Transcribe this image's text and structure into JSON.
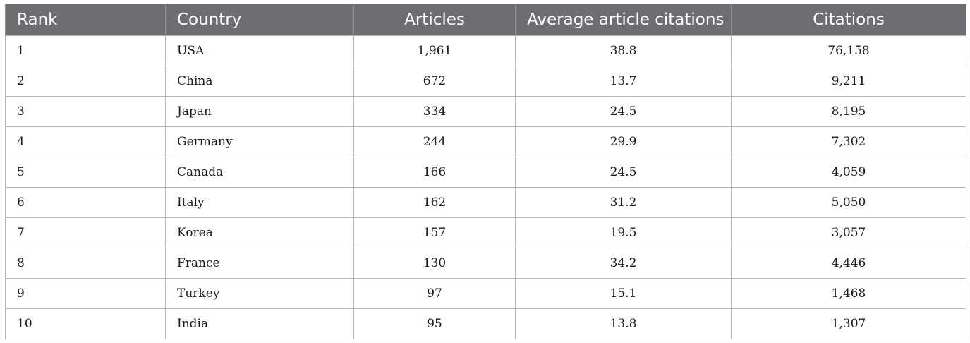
{
  "table": {
    "headers": {
      "rank": "Rank",
      "country": "Country",
      "articles": "Articles",
      "avg": "Average article citations",
      "citations": "Citations"
    },
    "rows": [
      {
        "rank": "1",
        "country": "USA",
        "articles": "1,961",
        "avg": "38.8",
        "citations": "76,158"
      },
      {
        "rank": "2",
        "country": "China",
        "articles": "672",
        "avg": "13.7",
        "citations": "9,211"
      },
      {
        "rank": "3",
        "country": "Japan",
        "articles": "334",
        "avg": "24.5",
        "citations": "8,195"
      },
      {
        "rank": "4",
        "country": "Germany",
        "articles": "244",
        "avg": "29.9",
        "citations": "7,302"
      },
      {
        "rank": "5",
        "country": "Canada",
        "articles": "166",
        "avg": "24.5",
        "citations": "4,059"
      },
      {
        "rank": "6",
        "country": "Italy",
        "articles": "162",
        "avg": "31.2",
        "citations": "5,050"
      },
      {
        "rank": "7",
        "country": "Korea",
        "articles": "157",
        "avg": "19.5",
        "citations": "3,057"
      },
      {
        "rank": "8",
        "country": "France",
        "articles": "130",
        "avg": "34.2",
        "citations": "4,446"
      },
      {
        "rank": "9",
        "country": "Turkey",
        "articles": "97",
        "avg": "15.1",
        "citations": "1,468"
      },
      {
        "rank": "10",
        "country": "India",
        "articles": "95",
        "avg": "13.8",
        "citations": "1,307"
      }
    ]
  },
  "colors": {
    "header_bg": "#6d6e71",
    "header_text": "#ffffff",
    "grid": "#b7b7b7"
  }
}
